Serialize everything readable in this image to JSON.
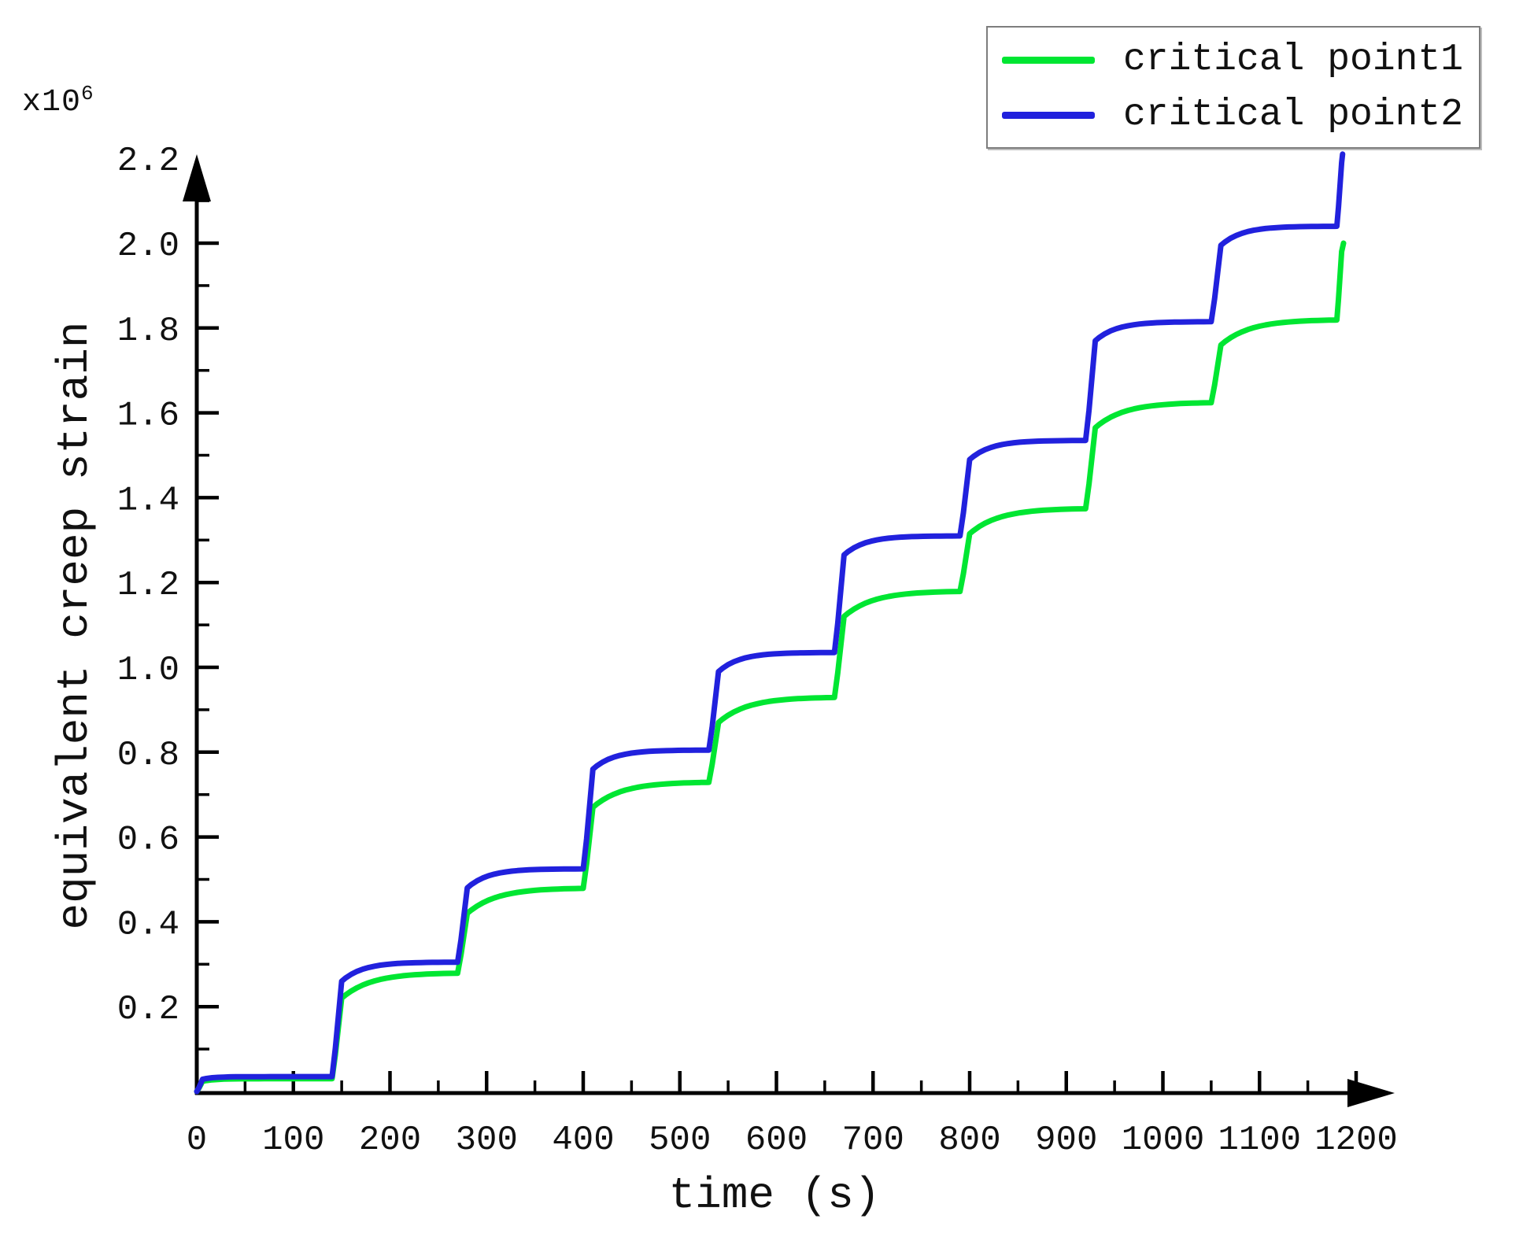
{
  "figure": {
    "background": "#ffffff",
    "axis_color": "#000000",
    "text_color": "#111111"
  },
  "scale_label": {
    "base": "x10",
    "exponent": "6"
  },
  "chart_data": {
    "type": "line",
    "title": "",
    "xlabel": "time (s)",
    "ylabel": "equivalent creep strain",
    "y_scale_note": "values shown are strain x10^6",
    "xlim": [
      0,
      1250
    ],
    "ylim": [
      0,
      2.2
    ],
    "x_major_ticks": [
      0,
      100,
      200,
      300,
      400,
      500,
      600,
      700,
      800,
      900,
      1000,
      1100,
      1200
    ],
    "x_minor_step": 50,
    "y_major_tick_labels": [
      0.2,
      0.4,
      0.6,
      0.8,
      1.0,
      1.2,
      1.4,
      1.6,
      1.8,
      2.0,
      2.2
    ],
    "y_minor_step": 0.1,
    "grid": "off",
    "legend_position": "top-right",
    "series": [
      {
        "name": "critical point1",
        "color": "#00e632",
        "step_times": [
          0,
          140,
          270,
          400,
          530,
          660,
          790,
          920,
          1050,
          1180
        ],
        "plateaus": [
          0.03,
          0.28,
          0.48,
          0.73,
          0.93,
          1.18,
          1.375,
          1.625,
          1.82
        ],
        "end_t": 1187,
        "end_v": 2.0,
        "knee_drop": 0.06,
        "tau": 30
      },
      {
        "name": "critical point2",
        "color": "#2121dd",
        "step_times": [
          0,
          140,
          270,
          400,
          530,
          660,
          790,
          920,
          1050,
          1180
        ],
        "plateaus": [
          0.035,
          0.305,
          0.525,
          0.805,
          1.035,
          1.31,
          1.535,
          1.815,
          2.04
        ],
        "end_t": 1186,
        "end_v": 2.21,
        "knee_drop": 0.045,
        "tau": 22
      }
    ]
  }
}
